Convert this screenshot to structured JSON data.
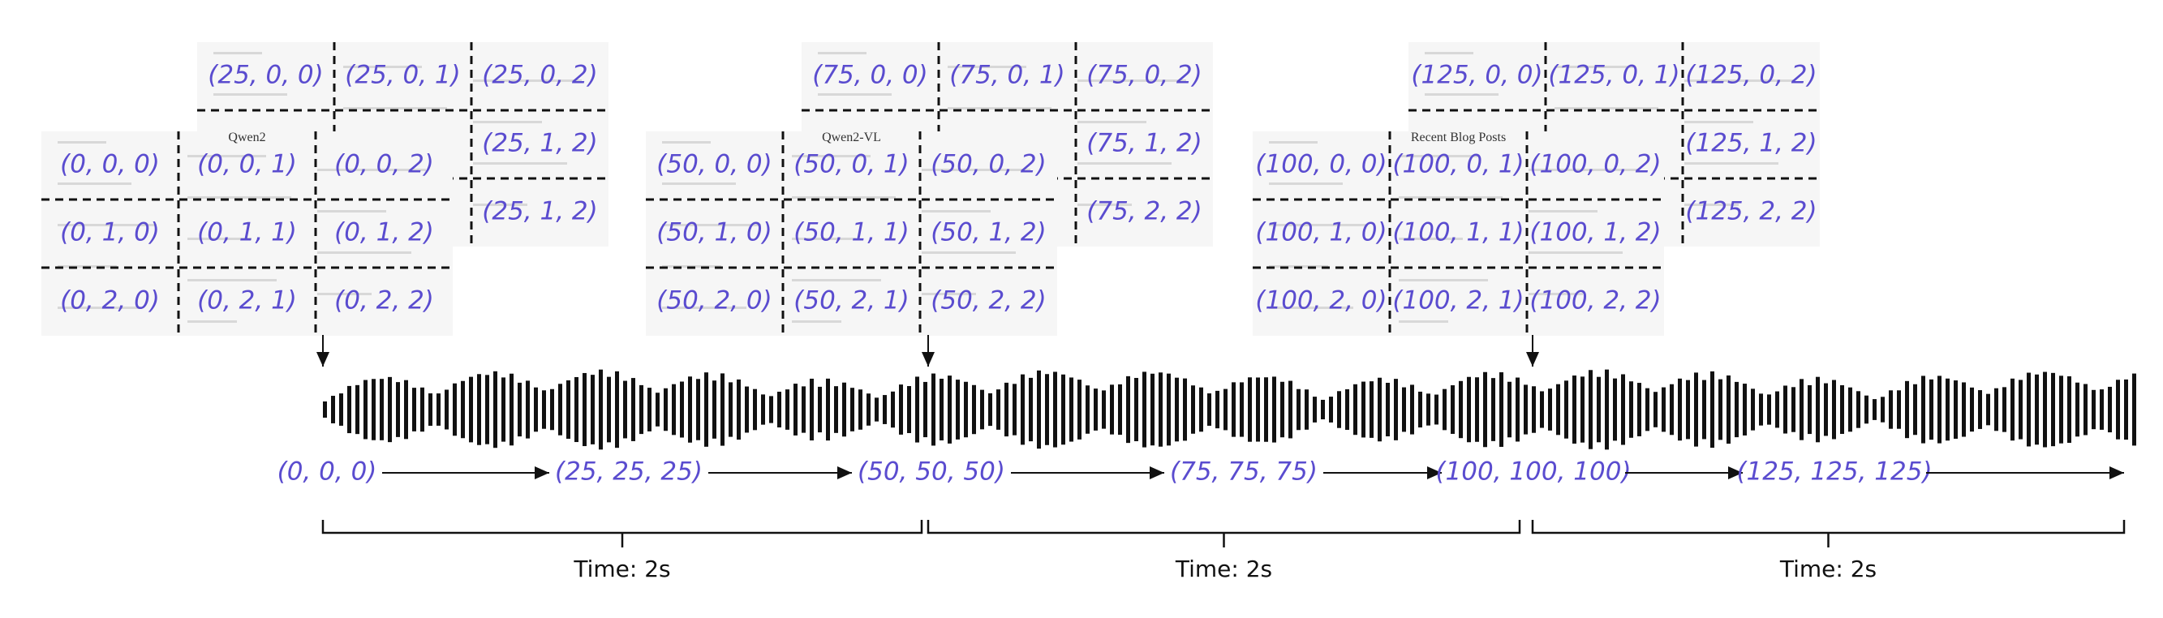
{
  "frames": [
    {
      "back": {
        "labels": [
          "(25, 0, 0)",
          "(25, 0, 1)",
          "(25, 0, 2)",
          "(25, 1, 2)",
          "(25, 1, 2)"
        ]
      },
      "front": {
        "labels": [
          "(0, 0, 0)",
          "(0, 0, 1)",
          "(0, 0, 2)",
          "(0, 1, 0)",
          "(0, 1, 1)",
          "(0, 1, 2)",
          "(0, 2, 0)",
          "(0, 2, 1)",
          "(0, 2, 2)"
        ],
        "caption": "Qwen2"
      }
    },
    {
      "back": {
        "labels": [
          "(75, 0, 0)",
          "(75, 0, 1)",
          "(75, 0, 2)",
          "(75, 1, 2)",
          "(75, 2, 2)"
        ]
      },
      "front": {
        "labels": [
          "(50, 0, 0)",
          "(50, 0, 1)",
          "(50, 0, 2)",
          "(50, 1, 0)",
          "(50, 1, 1)",
          "(50, 1, 2)",
          "(50, 2, 0)",
          "(50, 2, 1)",
          "(50, 2, 2)"
        ],
        "caption": "Qwen2-VL"
      }
    },
    {
      "back": {
        "labels": [
          "(125, 0, 0)",
          "(125, 0, 1)",
          "(125, 0, 2)",
          "(125, 1, 2)",
          "(125, 2, 2)"
        ]
      },
      "front": {
        "labels": [
          "(100, 0, 0)",
          "(100, 0, 1)",
          "(100, 0, 2)",
          "(100, 1, 0)",
          "(100, 1, 1)",
          "(100, 1, 2)",
          "(100, 2, 0)",
          "(100, 2, 1)",
          "(100, 2, 2)"
        ],
        "caption": "Recent Blog Posts"
      }
    }
  ],
  "timeline": {
    "positions": [
      "(0, 0, 0)",
      "(25, 25, 25)",
      "(50, 50, 50)",
      "(75, 75, 75)",
      "(100, 100, 100)",
      "(125, 125, 125)"
    ],
    "durations": [
      "Time: 2s",
      "Time: 2s",
      "Time: 2s"
    ]
  }
}
